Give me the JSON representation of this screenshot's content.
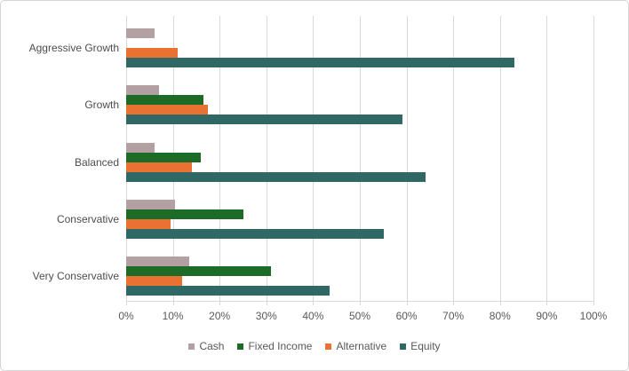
{
  "chart_data": {
    "type": "bar",
    "orientation": "horizontal",
    "title": "",
    "categories": [
      "Aggressive Growth",
      "Growth",
      "Balanced",
      "Conservative",
      "Very Conservative"
    ],
    "series": [
      {
        "name": "Cash",
        "color": "#b3a0a2",
        "values": [
          6,
          7,
          6,
          10.5,
          13.5
        ]
      },
      {
        "name": "Fixed Income",
        "color": "#1e6b27",
        "values": [
          0,
          16.5,
          16,
          25,
          31
        ]
      },
      {
        "name": "Alternative",
        "color": "#e97132",
        "values": [
          11,
          17.5,
          14,
          9.5,
          12
        ]
      },
      {
        "name": "Equity",
        "color": "#2f6865",
        "values": [
          83,
          59,
          64,
          55,
          43.5
        ]
      }
    ],
    "x_axis": {
      "min": 0,
      "max": 100,
      "tick_step": 10,
      "tick_labels": [
        "0%",
        "10%",
        "20%",
        "30%",
        "40%",
        "50%",
        "60%",
        "70%",
        "80%",
        "90%",
        "100%"
      ]
    },
    "legend": {
      "position": "bottom",
      "entries": [
        "Cash",
        "Fixed Income",
        "Alternative",
        "Equity"
      ]
    },
    "grid": true,
    "style": {
      "gridline_color": "#d9d9d9",
      "axis_line_color": "#d9d9d9",
      "tick_text_color": "#595959",
      "category_text_color": "#4d4d4d",
      "frame_border_color": "#d4d4d4",
      "background_color": "#ffffff"
    }
  }
}
